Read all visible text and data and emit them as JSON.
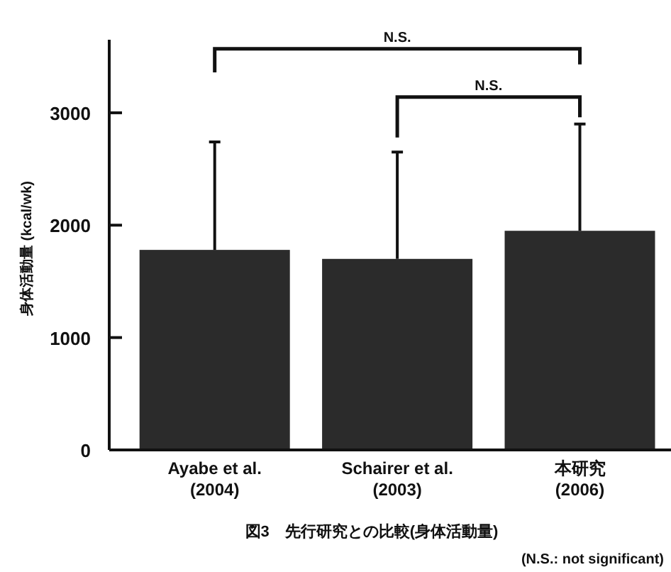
{
  "chart_data": {
    "type": "bar",
    "title": "図3　先行研究との比較(身体活動量)",
    "ylabel": "身体活動量 (kcal/wk)",
    "categories": [
      "Ayabe et al. (2004)",
      "Schairer et al. (2003)",
      "本研究 (2006)"
    ],
    "values": [
      1780,
      1700,
      1950
    ],
    "errors": [
      [
        1780,
        2740
      ],
      [
        1700,
        2650
      ],
      [
        1950,
        2900
      ]
    ],
    "color": "#2b2b2b",
    "ylim": [
      0,
      3650
    ],
    "yticks": [
      0,
      1000,
      2000,
      3000
    ],
    "annotations": [
      "N.S.",
      "N.S.",
      "(N.S.: not significant)"
    ]
  }
}
